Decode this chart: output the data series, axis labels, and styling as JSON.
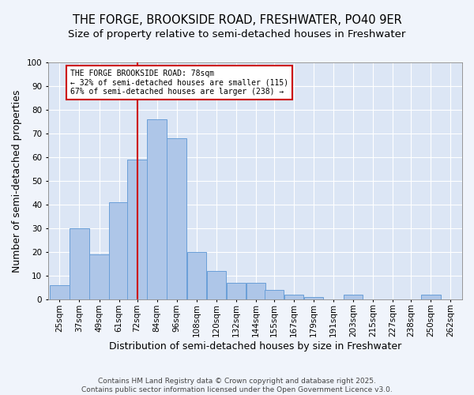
{
  "title": "THE FORGE, BROOKSIDE ROAD, FRESHWATER, PO40 9ER",
  "subtitle": "Size of property relative to semi-detached houses in Freshwater",
  "xlabel": "Distribution of semi-detached houses by size in Freshwater",
  "ylabel": "Number of semi-detached properties",
  "bar_left_edges": [
    25,
    37,
    49,
    61,
    72,
    84,
    96,
    108,
    120,
    132,
    144,
    155,
    167,
    179,
    191,
    203,
    215,
    227,
    238,
    250,
    262
  ],
  "bar_heights": [
    6,
    30,
    19,
    41,
    59,
    76,
    68,
    20,
    12,
    7,
    7,
    4,
    2,
    1,
    0,
    2,
    0,
    0,
    0,
    2,
    0
  ],
  "bin_width": 12,
  "bar_color": "#aec6e8",
  "bar_edge_color": "#6a9fd8",
  "red_line_x": 78,
  "annotation_text": "THE FORGE BROOKSIDE ROAD: 78sqm\n← 32% of semi-detached houses are smaller (115)\n67% of semi-detached houses are larger (238) →",
  "annotation_box_color": "#ffffff",
  "annotation_border_color": "#cc0000",
  "ylim": [
    0,
    100
  ],
  "yticks": [
    0,
    10,
    20,
    30,
    40,
    50,
    60,
    70,
    80,
    90,
    100
  ],
  "xtick_labels": [
    "25sqm",
    "37sqm",
    "49sqm",
    "61sqm",
    "72sqm",
    "84sqm",
    "96sqm",
    "108sqm",
    "120sqm",
    "132sqm",
    "144sqm",
    "155sqm",
    "167sqm",
    "179sqm",
    "191sqm",
    "203sqm",
    "215sqm",
    "227sqm",
    "238sqm",
    "250sqm",
    "262sqm"
  ],
  "footer_text": "Contains HM Land Registry data © Crown copyright and database right 2025.\nContains public sector information licensed under the Open Government Licence v3.0.",
  "background_color": "#f0f4fb",
  "plot_bg_color": "#dce6f5",
  "grid_color": "#ffffff",
  "title_fontsize": 10.5,
  "subtitle_fontsize": 9.5,
  "label_fontsize": 9,
  "tick_fontsize": 7.5,
  "footer_fontsize": 6.5
}
